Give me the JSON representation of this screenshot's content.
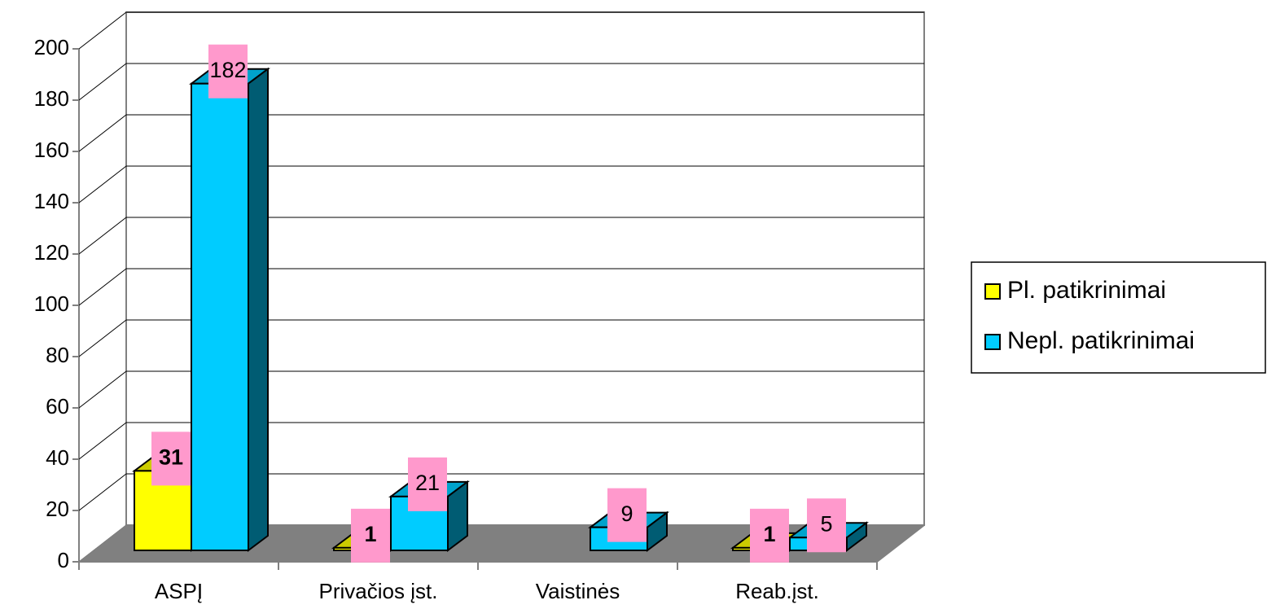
{
  "chart_data": {
    "type": "bar3d",
    "categories": [
      "ASPĮ",
      "Privačios įst.",
      "Vaistinės",
      "Reab.įst."
    ],
    "series": [
      {
        "name": "Pl. patikrinimai",
        "color": "#ffff00",
        "values": [
          31,
          1,
          null,
          1
        ]
      },
      {
        "name": "Nepl. patikrinimai",
        "color": "#00ccff",
        "values": [
          182,
          21,
          9,
          5
        ]
      }
    ],
    "ylim": [
      0,
      200
    ],
    "yticks": [
      0,
      20,
      40,
      60,
      80,
      100,
      120,
      140,
      160,
      180,
      200
    ],
    "grid": true,
    "legend": "right"
  }
}
